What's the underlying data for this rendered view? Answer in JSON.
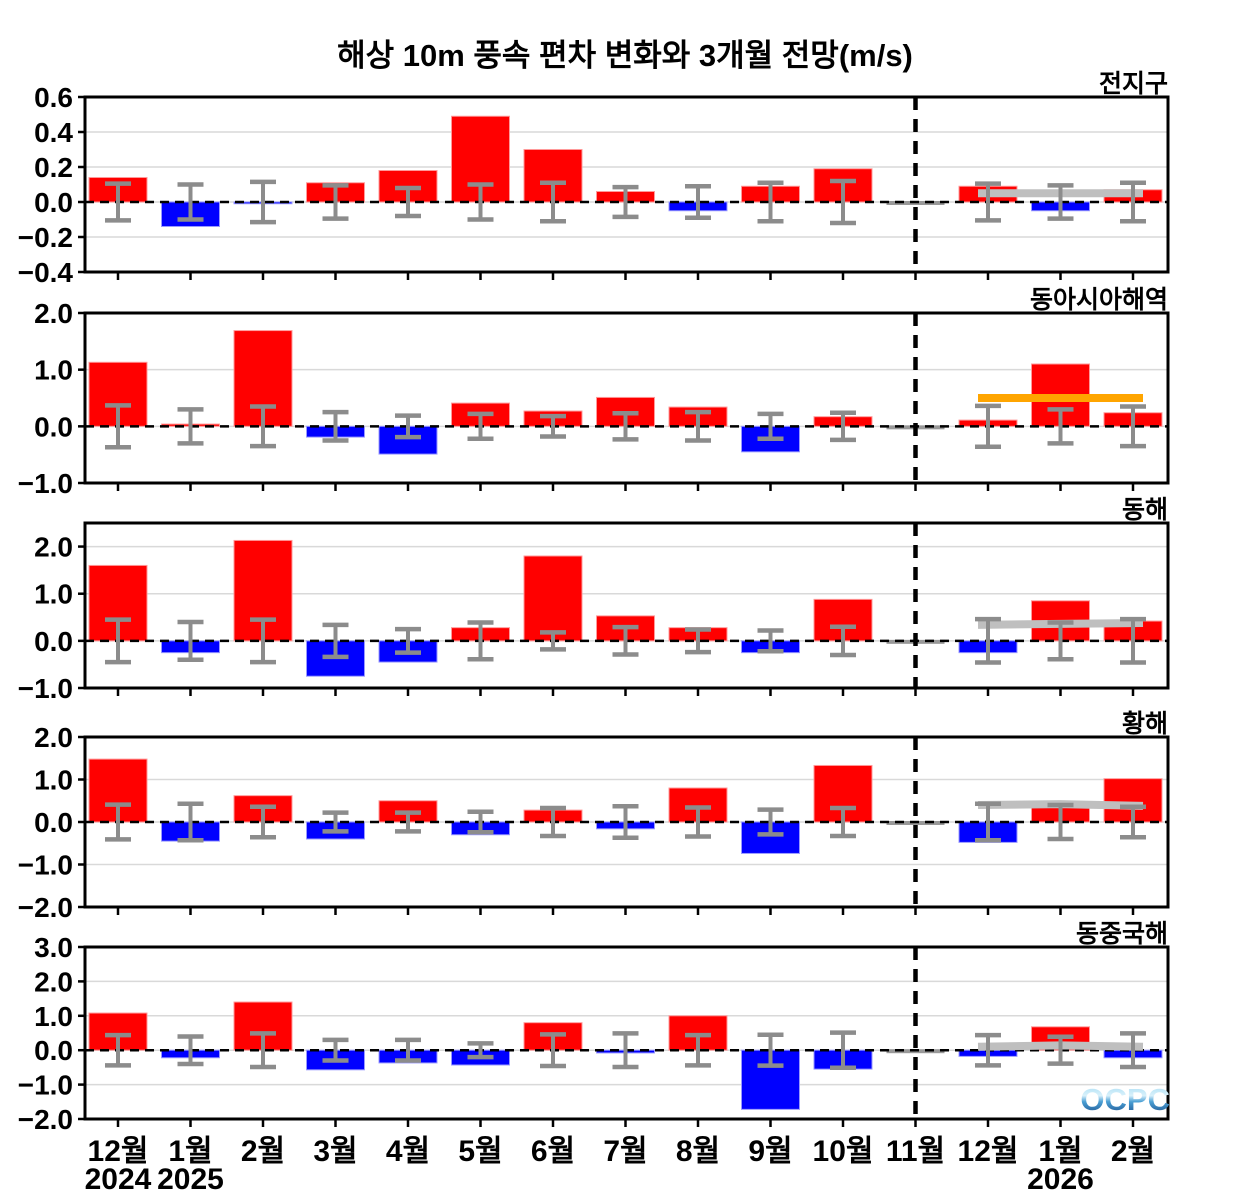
{
  "title": "해상 10m 풍속 편차 변화와 3개월 전망(m/s)",
  "logo": "OCPC",
  "colors": {
    "positive": "#ff0000",
    "negative": "#0000ff",
    "neutral": "#999999",
    "error_bar": "#8c8c8c",
    "band_gray": "#bfbfbf",
    "band_orange": "#ffa500",
    "grid": "#d9d9d9",
    "axis": "#000000"
  },
  "x_axis": {
    "months": [
      "12월",
      "1월",
      "2월",
      "3월",
      "4월",
      "5월",
      "6월",
      "7월",
      "8월",
      "9월",
      "10월",
      "11월",
      "12월",
      "1월",
      "2월"
    ],
    "years": [
      {
        "label": "2024",
        "month_index": 0
      },
      {
        "label": "2025",
        "month_index": 1
      },
      {
        "label": "2026",
        "month_index": 13
      }
    ],
    "forecast_divider_month_index": 11
  },
  "chart_data": [
    {
      "key": "global",
      "title": "전지구",
      "type": "bar",
      "ylim": [
        -0.4,
        0.6
      ],
      "yticks": [
        {
          "value": 0.6,
          "label": "0.6"
        },
        {
          "value": 0.4,
          "label": "0.4"
        },
        {
          "value": 0.2,
          "label": "0.2"
        },
        {
          "value": 0.0,
          "label": "0.0"
        },
        {
          "value": -0.2,
          "label": "−0.2"
        },
        {
          "value": -0.4,
          "label": "−0.4"
        }
      ],
      "values": [
        0.14,
        -0.14,
        -0.01,
        0.11,
        0.18,
        0.49,
        0.3,
        0.06,
        -0.05,
        0.09,
        0.19,
        -0.01,
        0.09,
        -0.05,
        0.07
      ],
      "errors": [
        0.105,
        0.1,
        0.115,
        0.095,
        0.08,
        0.1,
        0.11,
        0.085,
        0.09,
        0.11,
        0.12,
        null,
        0.105,
        0.095,
        0.11
      ],
      "forecast_line": {
        "color": "#bfbfbf",
        "months": [
          12,
          13,
          14
        ],
        "values": [
          0.05,
          0.05,
          0.05
        ]
      }
    },
    {
      "key": "east-asia-seas",
      "title": "동아시아해역",
      "type": "bar",
      "ylim": [
        -1.0,
        2.0
      ],
      "yticks": [
        {
          "value": 2.0,
          "label": "2.0"
        },
        {
          "value": 1.0,
          "label": "1.0"
        },
        {
          "value": 0.0,
          "label": "0.0"
        },
        {
          "value": -1.0,
          "label": "−1.0"
        }
      ],
      "values": [
        1.13,
        0.04,
        1.69,
        -0.19,
        -0.49,
        0.41,
        0.27,
        0.51,
        0.34,
        -0.45,
        0.17,
        -0.02,
        0.11,
        1.1,
        0.24
      ],
      "errors": [
        0.37,
        0.3,
        0.35,
        0.25,
        0.19,
        0.22,
        0.18,
        0.23,
        0.25,
        0.22,
        0.24,
        null,
        0.36,
        0.3,
        0.35
      ],
      "forecast_line": {
        "color": "#ffa500",
        "months": [
          12,
          13,
          14
        ],
        "values": [
          0.5,
          0.5,
          0.5
        ]
      }
    },
    {
      "key": "east-sea",
      "title": "동해",
      "type": "bar",
      "ylim": [
        -1.0,
        2.5
      ],
      "yticks": [
        {
          "value": 2.0,
          "label": "2.0"
        },
        {
          "value": 1.0,
          "label": "1.0"
        },
        {
          "value": 0.0,
          "label": "0.0"
        },
        {
          "value": -1.0,
          "label": "−1.0"
        }
      ],
      "values": [
        1.6,
        -0.25,
        2.13,
        -0.75,
        -0.45,
        0.28,
        1.8,
        0.53,
        0.28,
        -0.25,
        0.88,
        0.02,
        -0.25,
        0.85,
        0.42
      ],
      "errors": [
        0.45,
        0.4,
        0.45,
        0.34,
        0.25,
        0.39,
        0.18,
        0.29,
        0.24,
        0.22,
        0.3,
        null,
        0.46,
        0.39,
        0.46
      ],
      "forecast_line": {
        "color": "#bfbfbf",
        "months": [
          12,
          13,
          14
        ],
        "values": [
          0.34,
          0.36,
          0.38
        ]
      }
    },
    {
      "key": "yellow-sea",
      "title": "황해",
      "type": "bar",
      "ylim": [
        -2.0,
        2.0
      ],
      "yticks": [
        {
          "value": 2.0,
          "label": "2.0"
        },
        {
          "value": 1.0,
          "label": "1.0"
        },
        {
          "value": 0.0,
          "label": "0.0"
        },
        {
          "value": -1.0,
          "label": "−1.0"
        },
        {
          "value": -2.0,
          "label": "−2.0"
        }
      ],
      "values": [
        1.48,
        -0.45,
        0.62,
        -0.4,
        0.5,
        -0.3,
        0.28,
        -0.16,
        0.8,
        -0.74,
        1.33,
        0.02,
        -0.48,
        0.48,
        1.02
      ],
      "errors": [
        0.41,
        0.43,
        0.36,
        0.22,
        0.22,
        0.24,
        0.33,
        0.37,
        0.34,
        0.29,
        0.33,
        null,
        0.43,
        0.4,
        0.36
      ],
      "forecast_line": {
        "color": "#bfbfbf",
        "months": [
          12,
          13,
          14
        ],
        "values": [
          0.4,
          0.42,
          0.38
        ]
      }
    },
    {
      "key": "east-china-sea",
      "title": "동중국해",
      "type": "bar",
      "ylim": [
        -2.0,
        3.0
      ],
      "yticks": [
        {
          "value": 3.0,
          "label": "3.0"
        },
        {
          "value": 2.0,
          "label": "2.0"
        },
        {
          "value": 1.0,
          "label": "1.0"
        },
        {
          "value": 0.0,
          "label": "0.0"
        },
        {
          "value": -1.0,
          "label": "−1.0"
        },
        {
          "value": -2.0,
          "label": "−2.0"
        }
      ],
      "values": [
        1.08,
        -0.22,
        1.4,
        -0.57,
        -0.37,
        -0.43,
        0.8,
        -0.08,
        1.0,
        -1.72,
        -0.55,
        -0.03,
        -0.18,
        0.68,
        -0.22
      ],
      "errors": [
        0.44,
        0.4,
        0.49,
        0.3,
        0.3,
        0.2,
        0.46,
        0.49,
        0.44,
        0.45,
        0.51,
        null,
        0.44,
        0.39,
        0.49
      ],
      "forecast_line": {
        "color": "#bfbfbf",
        "months": [
          12,
          13,
          14
        ],
        "values": [
          0.1,
          0.14,
          0.1
        ]
      }
    }
  ]
}
